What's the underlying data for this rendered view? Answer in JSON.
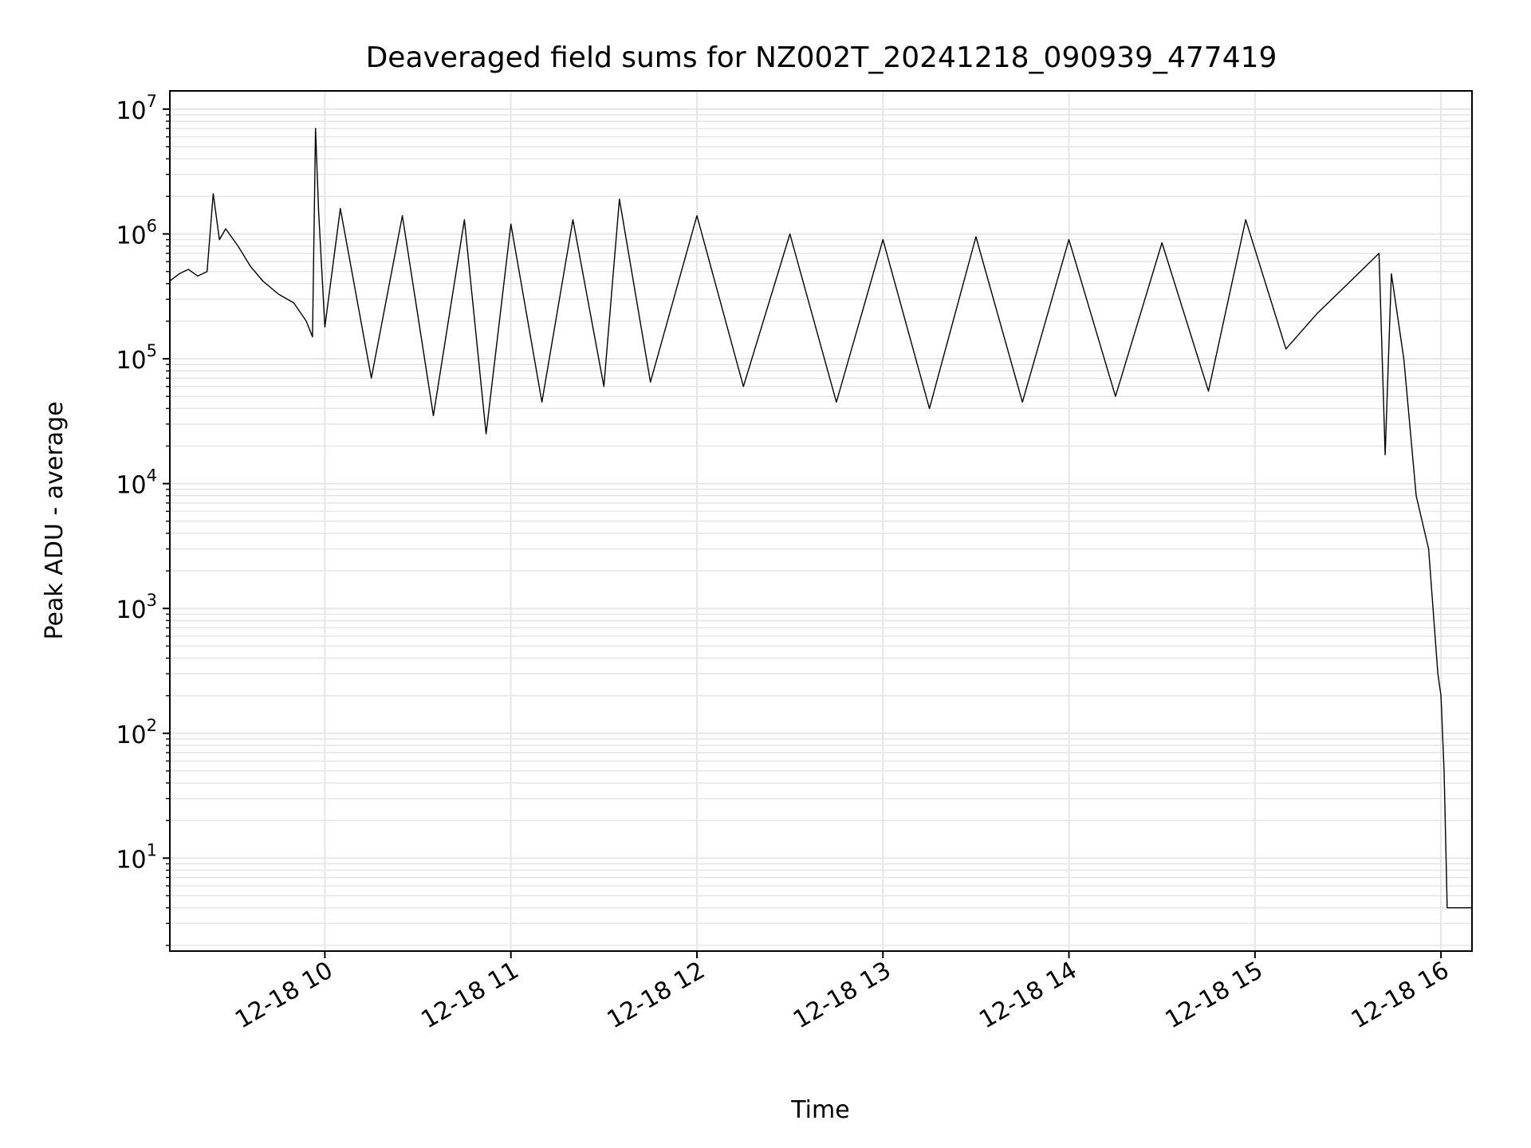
{
  "chart_data": {
    "type": "line",
    "title": "Deaveraged field sums for NZ002T_20241218_090939_477419",
    "xlabel": "Time",
    "ylabel": "Peak ADU - average",
    "x_scale": "time",
    "y_scale": "log",
    "xlim": [
      "2024-12-18 09:10",
      "2024-12-18 16:10"
    ],
    "ylim": [
      1.8,
      14000000
    ],
    "grid": "both (major and minor)",
    "legend": "none",
    "colors": {
      "series": "#000000",
      "grid": "#e6e6e6",
      "background": "#ffffff"
    },
    "x_ticks": [
      {
        "label": "12-18 10",
        "time": "2024-12-18 10:00"
      },
      {
        "label": "12-18 11",
        "time": "2024-12-18 11:00"
      },
      {
        "label": "12-18 12",
        "time": "2024-12-18 12:00"
      },
      {
        "label": "12-18 13",
        "time": "2024-12-18 13:00"
      },
      {
        "label": "12-18 14",
        "time": "2024-12-18 14:00"
      },
      {
        "label": "12-18 15",
        "time": "2024-12-18 15:00"
      },
      {
        "label": "12-18 16",
        "time": "2024-12-18 16:00"
      }
    ],
    "y_ticks": [
      {
        "base": "10",
        "exp": "1",
        "value": 10
      },
      {
        "base": "10",
        "exp": "2",
        "value": 100
      },
      {
        "base": "10",
        "exp": "3",
        "value": 1000
      },
      {
        "base": "10",
        "exp": "4",
        "value": 10000
      },
      {
        "base": "10",
        "exp": "5",
        "value": 100000
      },
      {
        "base": "10",
        "exp": "6",
        "value": 1000000
      },
      {
        "base": "10",
        "exp": "7",
        "value": 10000000
      }
    ],
    "series": [
      {
        "style": "black line",
        "points": [
          [
            "2024-12-18 09:10",
            420000
          ],
          [
            "2024-12-18 09:13",
            480000
          ],
          [
            "2024-12-18 09:16",
            520000
          ],
          [
            "2024-12-18 09:19",
            460000
          ],
          [
            "2024-12-18 09:22",
            500000
          ],
          [
            "2024-12-18 09:24",
            2100000
          ],
          [
            "2024-12-18 09:26",
            900000
          ],
          [
            "2024-12-18 09:28",
            1100000
          ],
          [
            "2024-12-18 09:32",
            800000
          ],
          [
            "2024-12-18 09:36",
            550000
          ],
          [
            "2024-12-18 09:40",
            420000
          ],
          [
            "2024-12-18 09:45",
            330000
          ],
          [
            "2024-12-18 09:50",
            280000
          ],
          [
            "2024-12-18 09:54",
            200000
          ],
          [
            "2024-12-18 09:56",
            150000
          ],
          [
            "2024-12-18 09:57",
            7000000
          ],
          [
            "2024-12-18 09:58",
            1500000
          ],
          [
            "2024-12-18 10:00",
            180000
          ],
          [
            "2024-12-18 10:05",
            1600000
          ],
          [
            "2024-12-18 10:15",
            70000
          ],
          [
            "2024-12-18 10:25",
            1400000
          ],
          [
            "2024-12-18 10:35",
            35000
          ],
          [
            "2024-12-18 10:45",
            1300000
          ],
          [
            "2024-12-18 10:52",
            25000
          ],
          [
            "2024-12-18 11:00",
            1200000
          ],
          [
            "2024-12-18 11:10",
            45000
          ],
          [
            "2024-12-18 11:20",
            1300000
          ],
          [
            "2024-12-18 11:30",
            60000
          ],
          [
            "2024-12-18 11:35",
            1900000
          ],
          [
            "2024-12-18 11:45",
            65000
          ],
          [
            "2024-12-18 12:00",
            1400000
          ],
          [
            "2024-12-18 12:15",
            60000
          ],
          [
            "2024-12-18 12:30",
            1000000
          ],
          [
            "2024-12-18 12:45",
            45000
          ],
          [
            "2024-12-18 13:00",
            900000
          ],
          [
            "2024-12-18 13:15",
            40000
          ],
          [
            "2024-12-18 13:30",
            950000
          ],
          [
            "2024-12-18 13:45",
            45000
          ],
          [
            "2024-12-18 14:00",
            900000
          ],
          [
            "2024-12-18 14:15",
            50000
          ],
          [
            "2024-12-18 14:30",
            850000
          ],
          [
            "2024-12-18 14:45",
            55000
          ],
          [
            "2024-12-18 14:57",
            1300000
          ],
          [
            "2024-12-18 15:10",
            120000
          ],
          [
            "2024-12-18 15:20",
            230000
          ],
          [
            "2024-12-18 15:30",
            400000
          ],
          [
            "2024-12-18 15:40",
            700000
          ],
          [
            "2024-12-18 15:42",
            17000
          ],
          [
            "2024-12-18 15:44",
            480000
          ],
          [
            "2024-12-18 15:48",
            100000
          ],
          [
            "2024-12-18 15:52",
            8000
          ],
          [
            "2024-12-18 15:56",
            3000
          ],
          [
            "2024-12-18 15:59",
            300
          ],
          [
            "2024-12-18 16:00",
            200
          ],
          [
            "2024-12-18 16:01",
            50
          ],
          [
            "2024-12-18 16:02",
            4
          ],
          [
            "2024-12-18 16:10",
            4
          ]
        ]
      }
    ]
  }
}
